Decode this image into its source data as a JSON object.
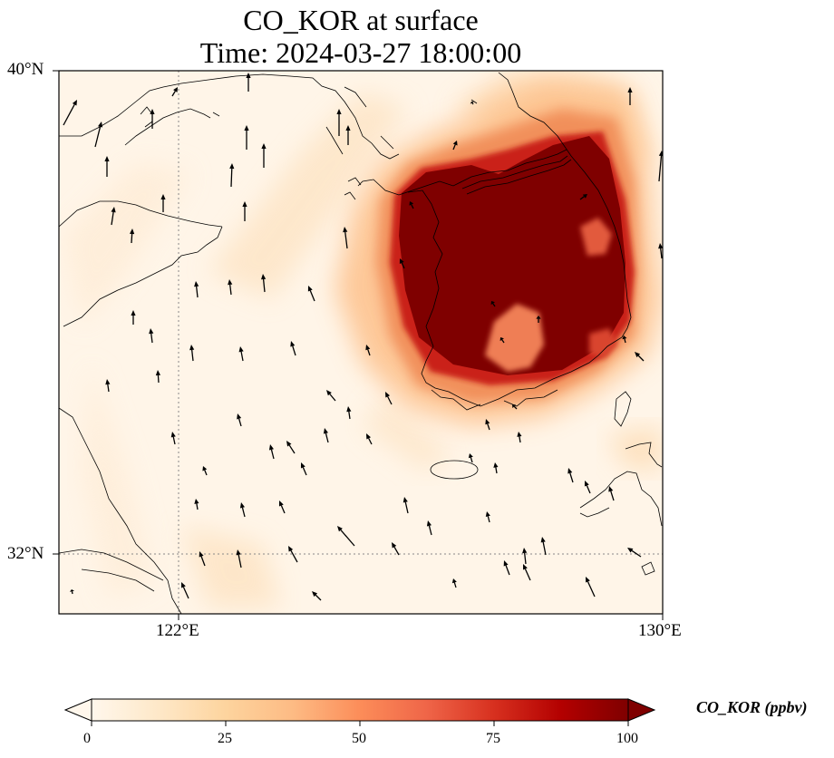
{
  "title_line1": "CO_KOR at surface",
  "title_line2": "Time: 2024-03-27 18:00:00",
  "map": {
    "lon_range": [
      120,
      130
    ],
    "lat_range": [
      31,
      40
    ],
    "lat_ticks": [
      {
        "value": 40,
        "label": "40°N"
      },
      {
        "value": 32,
        "label": "32°N"
      }
    ],
    "lon_ticks": [
      {
        "value": 122,
        "label": "122°E"
      },
      {
        "value": 130,
        "label": "130°E"
      }
    ],
    "gridlines": {
      "lat": [
        32
      ],
      "lon": [
        122
      ]
    },
    "field_variable": "CO_KOR",
    "colormap": "OrRd",
    "vectors": "wind arrows, predominantly northward / north-westward"
  },
  "colorbar": {
    "title": "CO_KOR (ppbv)",
    "min": 0,
    "max": 100,
    "extend": "both",
    "ticks": [
      {
        "value": 0,
        "label": "0"
      },
      {
        "value": 25,
        "label": "25"
      },
      {
        "value": 50,
        "label": "50"
      },
      {
        "value": 75,
        "label": "75"
      },
      {
        "value": 100,
        "label": "100"
      }
    ],
    "colors": [
      "#fff7ec",
      "#fee8c8",
      "#fdd49e",
      "#fdbb84",
      "#fc8d59",
      "#ef6548",
      "#d7301f",
      "#b30000",
      "#7f0000"
    ]
  }
}
